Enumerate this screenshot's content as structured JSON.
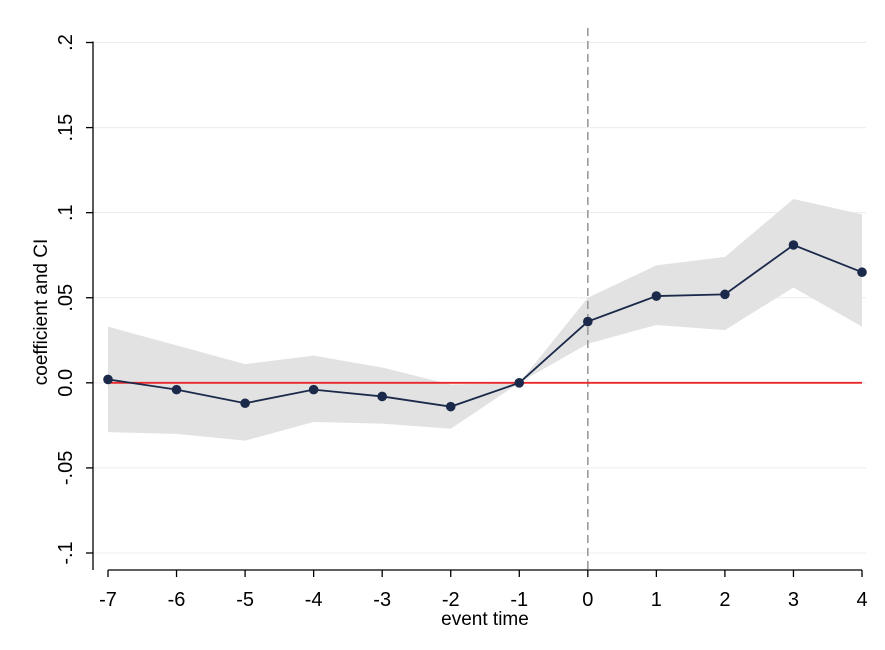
{
  "chart_data": {
    "type": "line",
    "title": "",
    "xlabel": "event time",
    "ylabel": "coefficient and CI",
    "x": [
      -7,
      -6,
      -5,
      -4,
      -3,
      -2,
      -1,
      0,
      1,
      2,
      3,
      4
    ],
    "x_tick_labels": [
      "-7",
      "-6",
      "-5",
      "-4",
      "-3",
      "-2",
      "-1",
      "0",
      "1",
      "2",
      "3",
      "4"
    ],
    "y_ticks": [
      -0.1,
      -0.05,
      0,
      0.05,
      0.1,
      0.15,
      0.2
    ],
    "y_tick_labels": [
      "-.1",
      "-.05",
      "0.0",
      ".05",
      ".1",
      ".15",
      ".2"
    ],
    "xlim": [
      -7,
      4
    ],
    "ylim": [
      -0.11,
      0.205
    ],
    "series": [
      {
        "values": [
          0.002,
          -0.004,
          -0.012,
          -0.004,
          -0.008,
          -0.014,
          0.0,
          0.036,
          0.051,
          0.052,
          0.081,
          0.065
        ],
        "ci_lower": [
          -0.029,
          -0.03,
          -0.034,
          -0.023,
          -0.024,
          -0.027,
          0.0,
          0.023,
          0.034,
          0.031,
          0.056,
          0.033
        ],
        "ci_upper": [
          0.033,
          0.022,
          0.011,
          0.016,
          0.009,
          -0.001,
          0.0,
          0.05,
          0.069,
          0.074,
          0.108,
          0.099
        ]
      }
    ],
    "reference_line_y": 0,
    "reference_line_x": 0,
    "grid": true,
    "legend": "none",
    "colors": {
      "line": "#1b2a4a",
      "marker": "#1b2a4a",
      "ci_band": "#e2e2e2",
      "zero_line": "#e8282a",
      "event_line": "#9a9a9a",
      "grid": "#ececec",
      "axis": "#000000"
    }
  }
}
